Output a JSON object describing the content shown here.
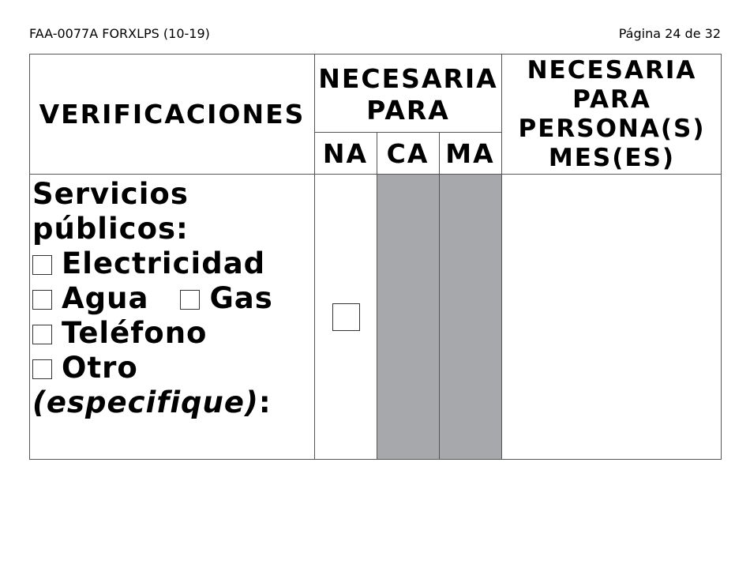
{
  "header": {
    "form_id": "FAA-0077A FORXLPS (10-19)",
    "page": "Página 24 de 32"
  },
  "table": {
    "col_verificaciones": "VERIFICACIONES",
    "col_necesaria_para": "NECESARIA PARA",
    "sub_na": "NA",
    "sub_ca": "CA",
    "sub_ma": "MA",
    "col_persona_mes": "NECESARIA PARA PERSONA(S) MES(ES)",
    "row": {
      "title_line1": "Servicios",
      "title_line2": "públicos:",
      "options": [
        "Electricidad",
        "Agua",
        "Gas",
        "Teléfono",
        "Otro"
      ],
      "specify": "(especifique)",
      "specify_colon": ":"
    },
    "shade_color": "#a7a8ab"
  }
}
